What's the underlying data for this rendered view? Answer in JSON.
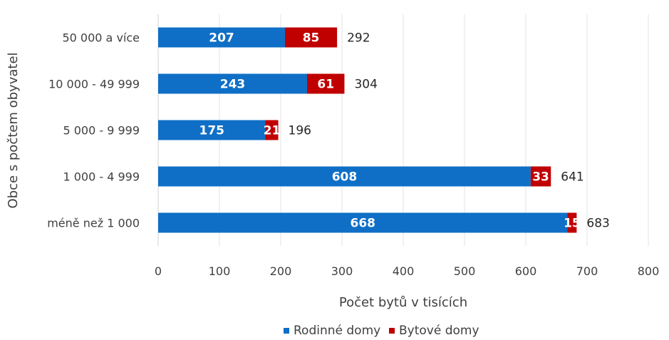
{
  "chart_data": {
    "type": "bar",
    "orientation": "horizontal",
    "stacked": true,
    "categories": [
      "50 000 a více",
      "10 000 - 49 999",
      "5 000 - 9 999",
      "1 000 - 4 999",
      "méně než 1 000"
    ],
    "series": [
      {
        "name": "Rodinné domy",
        "color": "#0F6FC6",
        "values": [
          207,
          243,
          175,
          608,
          668
        ],
        "labels": [
          "207",
          "243",
          "175",
          "608",
          "668"
        ]
      },
      {
        "name": "Bytové domy",
        "color": "#C00000",
        "values": [
          85,
          61,
          21,
          33,
          15
        ],
        "labels": [
          "85",
          "61",
          "21",
          "33",
          "15"
        ]
      }
    ],
    "totals": [
      292,
      304,
      196,
      641,
      683
    ],
    "xlabel": "Počet bytů v tisících",
    "ylabel": "Obce s počtem obyvatel",
    "xlim": [
      0,
      800
    ],
    "xticks": [
      0,
      100,
      200,
      300,
      400,
      500,
      600,
      700,
      800
    ],
    "grid": "vertical",
    "legend_position": "bottom"
  }
}
